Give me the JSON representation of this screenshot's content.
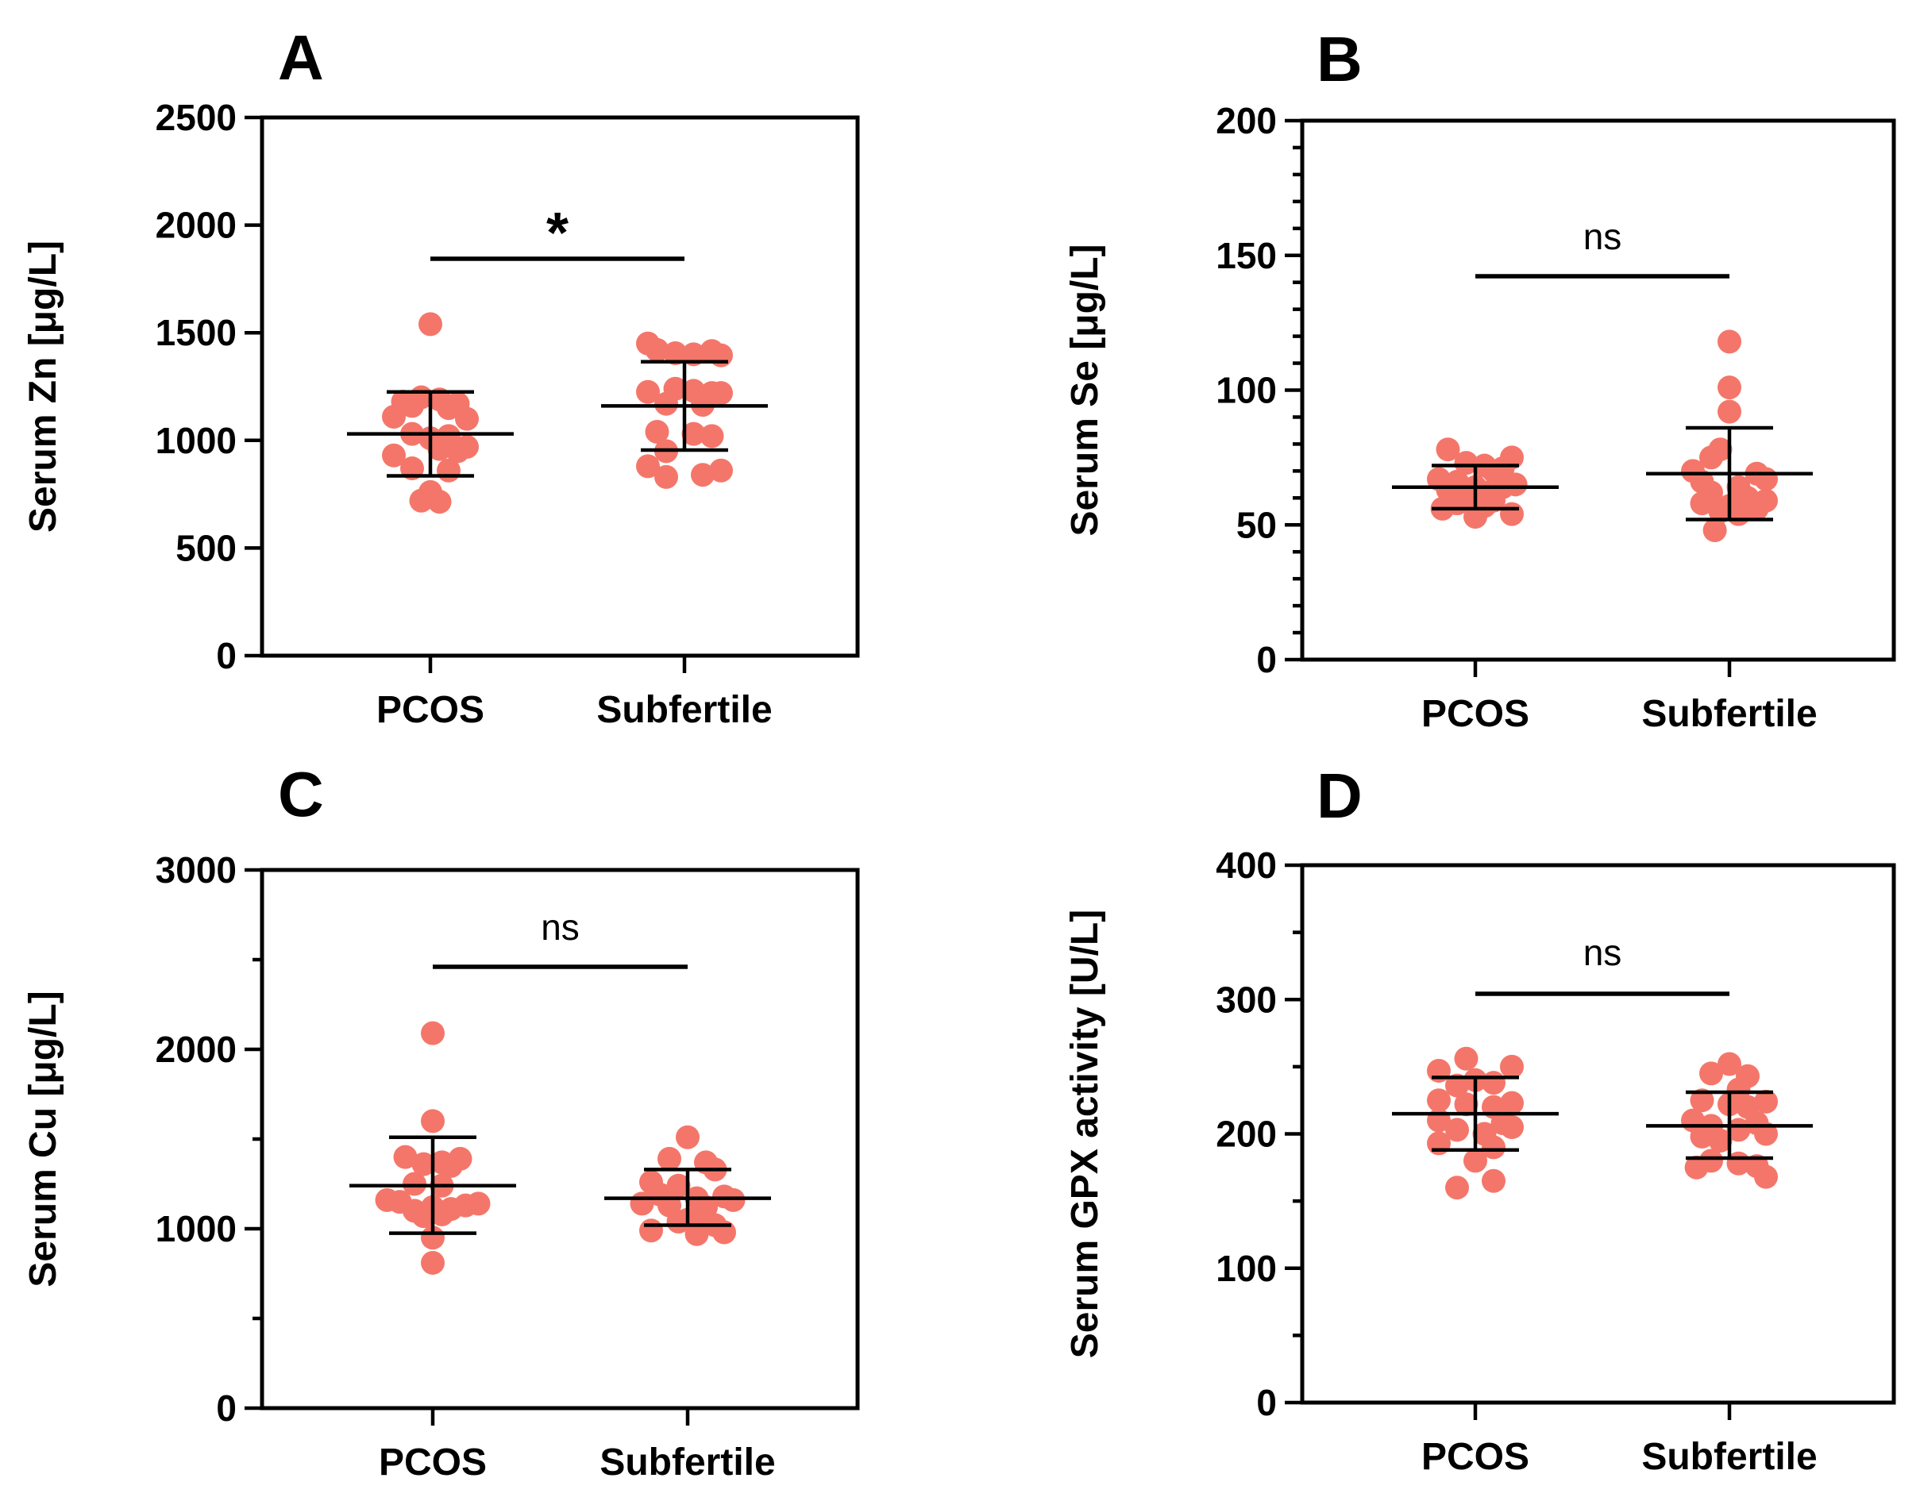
{
  "chart_data": [
    {
      "type": "scatter",
      "panel": "A",
      "ylabel": "Serum Zn [μg/L]",
      "ylim": [
        0,
        2500
      ],
      "yticks": [
        0,
        500,
        1000,
        1500,
        2000,
        2500
      ],
      "ytick_labels": [
        "0",
        "500",
        "1000",
        "1500",
        "2000",
        "2500"
      ],
      "minor_ticks": 0,
      "categories": [
        "PCOS",
        "Subfertile"
      ],
      "significance": "*",
      "point_color": "#F4766A",
      "groups": [
        {
          "name": "PCOS",
          "mean": 1030,
          "sd_low": 835,
          "sd_high": 1225,
          "points": [
            {
              "value": 1540,
              "offset": 0
            },
            {
              "value": 1200,
              "offset": -0.5
            },
            {
              "value": 1190,
              "offset": 0.5
            },
            {
              "value": 1180,
              "offset": -1.5
            },
            {
              "value": 1170,
              "offset": 1.5
            },
            {
              "value": 1160,
              "offset": -1
            },
            {
              "value": 1150,
              "offset": 1
            },
            {
              "value": 1110,
              "offset": -2
            },
            {
              "value": 1100,
              "offset": 2
            },
            {
              "value": 1030,
              "offset": -1
            },
            {
              "value": 1020,
              "offset": 1
            },
            {
              "value": 1010,
              "offset": 0
            },
            {
              "value": 970,
              "offset": 2
            },
            {
              "value": 960,
              "offset": 0.5
            },
            {
              "value": 950,
              "offset": 1.5
            },
            {
              "value": 930,
              "offset": -2
            },
            {
              "value": 870,
              "offset": -1
            },
            {
              "value": 860,
              "offset": 1
            },
            {
              "value": 760,
              "offset": 0
            },
            {
              "value": 720,
              "offset": -0.5
            },
            {
              "value": 715,
              "offset": 0.5
            }
          ]
        },
        {
          "name": "Subfertile",
          "mean": 1160,
          "sd_low": 955,
          "sd_high": 1365,
          "points": [
            {
              "value": 1450,
              "offset": -2
            },
            {
              "value": 1420,
              "offset": -1.5
            },
            {
              "value": 1415,
              "offset": 1.5
            },
            {
              "value": 1405,
              "offset": -0.5
            },
            {
              "value": 1400,
              "offset": 0.5
            },
            {
              "value": 1395,
              "offset": 2
            },
            {
              "value": 1240,
              "offset": -0.5
            },
            {
              "value": 1230,
              "offset": 0.5
            },
            {
              "value": 1225,
              "offset": -2
            },
            {
              "value": 1220,
              "offset": 2
            },
            {
              "value": 1220,
              "offset": 1.5
            },
            {
              "value": 1170,
              "offset": -1
            },
            {
              "value": 1165,
              "offset": 1
            },
            {
              "value": 1040,
              "offset": -1.5
            },
            {
              "value": 1030,
              "offset": 0.5
            },
            {
              "value": 1020,
              "offset": 1.5
            },
            {
              "value": 950,
              "offset": -1
            },
            {
              "value": 880,
              "offset": -2
            },
            {
              "value": 860,
              "offset": 2
            },
            {
              "value": 840,
              "offset": 1
            },
            {
              "value": 830,
              "offset": -1
            }
          ]
        }
      ]
    },
    {
      "type": "scatter",
      "panel": "B",
      "ylabel": "Serum Se [μg/L]",
      "ylim": [
        0,
        200
      ],
      "yticks": [
        0,
        50,
        100,
        150,
        200
      ],
      "ytick_labels": [
        "0",
        "50",
        "100",
        "150",
        "200"
      ],
      "minor_ticks": 4,
      "categories": [
        "PCOS",
        "Subfertile"
      ],
      "significance": "ns",
      "point_color": "#F4766A",
      "groups": [
        {
          "name": "PCOS",
          "mean": 64,
          "sd_low": 56,
          "sd_high": 72,
          "points": [
            {
              "value": 78,
              "offset": -1.5
            },
            {
              "value": 75,
              "offset": 2
            },
            {
              "value": 73,
              "offset": -0.5
            },
            {
              "value": 72,
              "offset": 0.5
            },
            {
              "value": 71,
              "offset": 1.5
            },
            {
              "value": 70,
              "offset": 1
            },
            {
              "value": 67,
              "offset": -2
            },
            {
              "value": 66,
              "offset": -1
            },
            {
              "value": 65,
              "offset": 2.2
            },
            {
              "value": 64,
              "offset": 0
            },
            {
              "value": 64,
              "offset": 1.5
            },
            {
              "value": 63,
              "offset": -1.5
            },
            {
              "value": 62,
              "offset": 0.5
            },
            {
              "value": 60,
              "offset": -0.5
            },
            {
              "value": 59,
              "offset": 1
            },
            {
              "value": 58,
              "offset": -1
            },
            {
              "value": 57,
              "offset": 0.5
            },
            {
              "value": 56,
              "offset": -1.8
            },
            {
              "value": 54,
              "offset": 2
            },
            {
              "value": 53,
              "offset": 0
            }
          ]
        },
        {
          "name": "Subfertile",
          "mean": 69,
          "sd_low": 52,
          "sd_high": 86,
          "points": [
            {
              "value": 118,
              "offset": 0
            },
            {
              "value": 101,
              "offset": 0
            },
            {
              "value": 92,
              "offset": 0
            },
            {
              "value": 78,
              "offset": -0.5
            },
            {
              "value": 75,
              "offset": -1
            },
            {
              "value": 70,
              "offset": -2
            },
            {
              "value": 69,
              "offset": 1.5
            },
            {
              "value": 67,
              "offset": 2
            },
            {
              "value": 66,
              "offset": -1.5
            },
            {
              "value": 64,
              "offset": 0.5
            },
            {
              "value": 62,
              "offset": -1
            },
            {
              "value": 60,
              "offset": 1
            },
            {
              "value": 59,
              "offset": 2
            },
            {
              "value": 58,
              "offset": -1.5
            },
            {
              "value": 57,
              "offset": 0
            },
            {
              "value": 56,
              "offset": 1.5
            },
            {
              "value": 55,
              "offset": -0.5
            },
            {
              "value": 54,
              "offset": 0.5
            },
            {
              "value": 48,
              "offset": -0.8
            }
          ]
        }
      ]
    },
    {
      "type": "scatter",
      "panel": "C",
      "ylabel": "Serum Cu [μg/L]",
      "ylim": [
        0,
        3000
      ],
      "yticks": [
        0,
        1000,
        2000,
        3000
      ],
      "ytick_labels": [
        "0",
        "1000",
        "2000",
        "3000"
      ],
      "minor_ticks": 1,
      "categories": [
        "PCOS",
        "Subfertile"
      ],
      "significance": "ns",
      "point_color": "#F4766A",
      "groups": [
        {
          "name": "PCOS",
          "mean": 1240,
          "sd_low": 975,
          "sd_high": 1510,
          "points": [
            {
              "value": 2090,
              "offset": 0
            },
            {
              "value": 1600,
              "offset": 0
            },
            {
              "value": 1400,
              "offset": -1.5
            },
            {
              "value": 1390,
              "offset": 1.5
            },
            {
              "value": 1370,
              "offset": 0.5
            },
            {
              "value": 1360,
              "offset": -0.5
            },
            {
              "value": 1350,
              "offset": 1
            },
            {
              "value": 1250,
              "offset": -1
            },
            {
              "value": 1240,
              "offset": 0.5
            },
            {
              "value": 1160,
              "offset": -2.5
            },
            {
              "value": 1150,
              "offset": -1.8
            },
            {
              "value": 1140,
              "offset": 2.5
            },
            {
              "value": 1130,
              "offset": 1.8
            },
            {
              "value": 1120,
              "offset": 0
            },
            {
              "value": 1110,
              "offset": 1
            },
            {
              "value": 1100,
              "offset": -1
            },
            {
              "value": 1080,
              "offset": 0.5
            },
            {
              "value": 1070,
              "offset": -0.5
            },
            {
              "value": 950,
              "offset": 0
            },
            {
              "value": 810,
              "offset": 0
            }
          ]
        },
        {
          "name": "Subfertile",
          "mean": 1170,
          "sd_low": 1020,
          "sd_high": 1330,
          "points": [
            {
              "value": 1510,
              "offset": 0
            },
            {
              "value": 1390,
              "offset": -1
            },
            {
              "value": 1370,
              "offset": 1
            },
            {
              "value": 1330,
              "offset": 1.5
            },
            {
              "value": 1260,
              "offset": -2
            },
            {
              "value": 1240,
              "offset": -0.5
            },
            {
              "value": 1190,
              "offset": -1.5
            },
            {
              "value": 1180,
              "offset": 2
            },
            {
              "value": 1170,
              "offset": 0.5
            },
            {
              "value": 1160,
              "offset": 2.5
            },
            {
              "value": 1140,
              "offset": -2.5
            },
            {
              "value": 1130,
              "offset": -1
            },
            {
              "value": 1120,
              "offset": 1
            },
            {
              "value": 1050,
              "offset": 0
            },
            {
              "value": 1040,
              "offset": -0.5
            },
            {
              "value": 1030,
              "offset": 0.5
            },
            {
              "value": 1020,
              "offset": 1.5
            },
            {
              "value": 990,
              "offset": -2
            },
            {
              "value": 980,
              "offset": 2
            },
            {
              "value": 970,
              "offset": 0.5
            }
          ]
        }
      ]
    },
    {
      "type": "scatter",
      "panel": "D",
      "ylabel": "Serum GPX activity [U/L]",
      "ylim": [
        0,
        400
      ],
      "yticks": [
        0,
        100,
        200,
        300,
        400
      ],
      "ytick_labels": [
        "0",
        "100",
        "200",
        "300",
        "400"
      ],
      "minor_ticks": 1,
      "categories": [
        "PCOS",
        "Subfertile"
      ],
      "significance": "ns",
      "point_color": "#F4766A",
      "groups": [
        {
          "name": "PCOS",
          "mean": 215,
          "sd_low": 188,
          "sd_high": 242,
          "points": [
            {
              "value": 256,
              "offset": -0.5
            },
            {
              "value": 250,
              "offset": 2
            },
            {
              "value": 247,
              "offset": -2
            },
            {
              "value": 240,
              "offset": 0
            },
            {
              "value": 238,
              "offset": 1
            },
            {
              "value": 236,
              "offset": -1
            },
            {
              "value": 225,
              "offset": -2
            },
            {
              "value": 223,
              "offset": 2
            },
            {
              "value": 222,
              "offset": -0.5
            },
            {
              "value": 220,
              "offset": 1
            },
            {
              "value": 210,
              "offset": -2
            },
            {
              "value": 208,
              "offset": 1.5
            },
            {
              "value": 205,
              "offset": 2
            },
            {
              "value": 203,
              "offset": -1
            },
            {
              "value": 200,
              "offset": 0.5
            },
            {
              "value": 193,
              "offset": -2
            },
            {
              "value": 190,
              "offset": 1
            },
            {
              "value": 180,
              "offset": 0
            },
            {
              "value": 165,
              "offset": 1
            },
            {
              "value": 160,
              "offset": -1
            }
          ]
        },
        {
          "name": "Subfertile",
          "mean": 206,
          "sd_low": 182,
          "sd_high": 231,
          "points": [
            {
              "value": 252,
              "offset": 0
            },
            {
              "value": 245,
              "offset": -1
            },
            {
              "value": 243,
              "offset": 1
            },
            {
              "value": 233,
              "offset": 0.5
            },
            {
              "value": 225,
              "offset": -1.5
            },
            {
              "value": 224,
              "offset": 2
            },
            {
              "value": 222,
              "offset": 0
            },
            {
              "value": 220,
              "offset": 1
            },
            {
              "value": 210,
              "offset": -2
            },
            {
              "value": 208,
              "offset": 1.5
            },
            {
              "value": 206,
              "offset": -1
            },
            {
              "value": 203,
              "offset": 0.5
            },
            {
              "value": 200,
              "offset": 2
            },
            {
              "value": 198,
              "offset": -1.5
            },
            {
              "value": 195,
              "offset": -0.5
            },
            {
              "value": 180,
              "offset": -1
            },
            {
              "value": 178,
              "offset": 0.5
            },
            {
              "value": 176,
              "offset": 1.5
            },
            {
              "value": 175,
              "offset": -1.8
            },
            {
              "value": 168,
              "offset": 2
            }
          ]
        }
      ]
    }
  ]
}
